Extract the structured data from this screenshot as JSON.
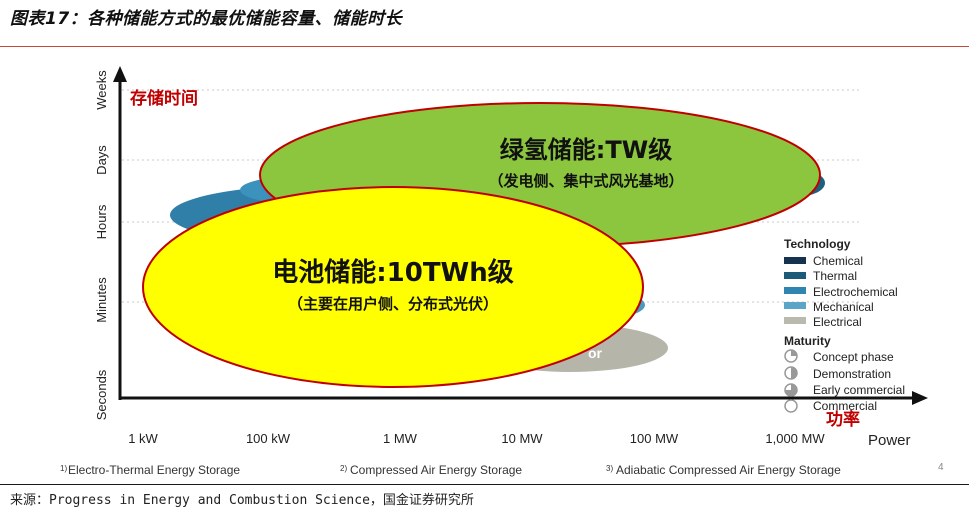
{
  "title": "图表17：各种储能方式的最优储能容量、储能时长",
  "source": "来源：Progress in Energy and Combustion Science，国金证券研究所",
  "diagram": {
    "y_axis_title": "存储时间",
    "x_axis_title": "功率",
    "x_axis_label_en": "Power",
    "y_ticks": [
      "Weeks",
      "Days",
      "Hours",
      "Minutes",
      "Seconds"
    ],
    "x_ticks": [
      "1 kW",
      "100 kW",
      "1 MW",
      "10 MW",
      "100 MW",
      "1,000 MW"
    ],
    "hydrogen_title": "绿氢储能:TW级",
    "hydrogen_subtitle": "（发电侧、集中式风光基地）",
    "battery_title": "电池储能:10TWh级",
    "battery_subtitle": "（主要在用户侧、分布式光伏）",
    "partial_label": "or",
    "page_number": "4",
    "legend": {
      "technology_title": "Technology",
      "technology_items": [
        {
          "label": "Chemical",
          "color": "#16324f"
        },
        {
          "label": "Thermal",
          "color": "#1d5a78"
        },
        {
          "label": "Electrochemical",
          "color": "#2e86b0"
        },
        {
          "label": "Mechanical",
          "color": "#5ba6c8"
        },
        {
          "label": "Electrical",
          "color": "#b9b9ae"
        }
      ],
      "maturity_title": "Maturity",
      "maturity_items": [
        {
          "label": "Concept phase"
        },
        {
          "label": "Demonstration"
        },
        {
          "label": "Early commercial"
        },
        {
          "label": "Commercial"
        }
      ]
    },
    "footnotes": [
      {
        "mark": "1)",
        "text": "Electro-Thermal Energy Storage"
      },
      {
        "mark": "2)",
        "text": "Compressed Air Energy Storage"
      },
      {
        "mark": "3)",
        "text": "Adiabatic Compressed Air Energy Storage"
      }
    ],
    "colors": {
      "hydrogen_fill": "#8cc63f",
      "battery_fill": "#ffff00",
      "ellipse_stroke": "#c00000",
      "axis_title": "#c00000"
    }
  }
}
